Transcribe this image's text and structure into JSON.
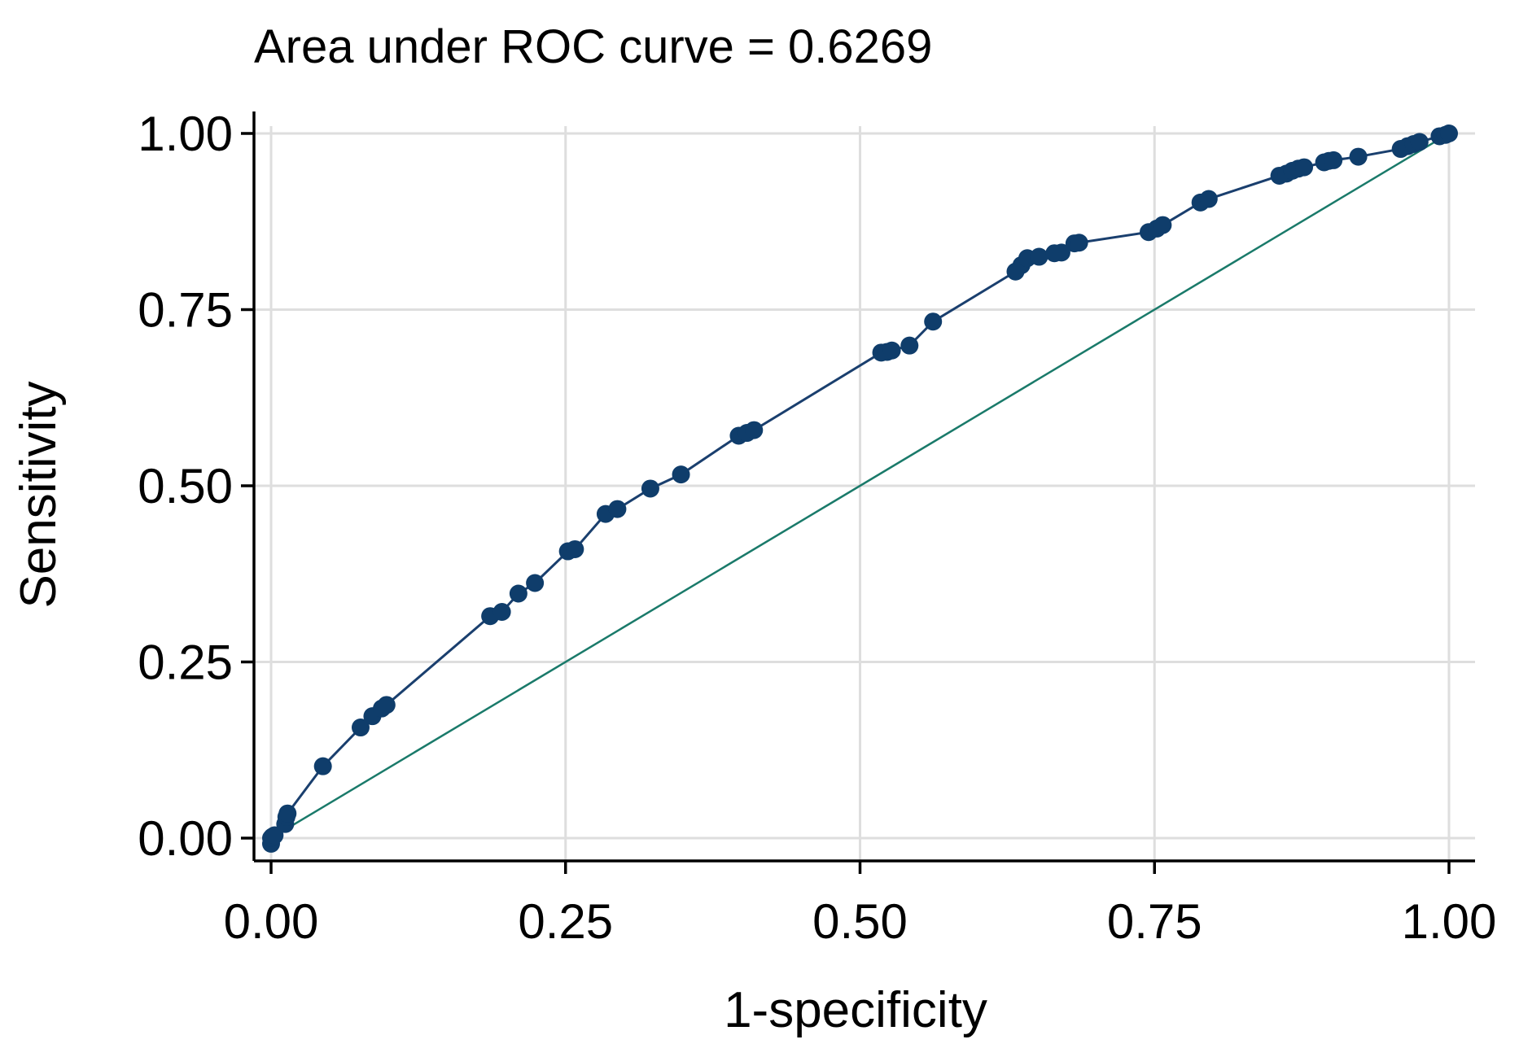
{
  "chart_data": {
    "type": "line",
    "title": "Area under ROC curve = 0.6269",
    "xlabel": "1-specificity",
    "ylabel": "Sensitivity",
    "xlim": [
      0,
      1
    ],
    "ylim": [
      0,
      1
    ],
    "xticks": [
      "0.00",
      "0.25",
      "0.50",
      "0.75",
      "1.00"
    ],
    "yticks": [
      "0.00",
      "0.25",
      "0.50",
      "0.75",
      "1.00"
    ],
    "grid": true,
    "colors": {
      "roc": "#1a3f6e",
      "marker": "#0f3d6b",
      "reference": "#1a7a6a",
      "grid": "#dedede"
    },
    "series": [
      {
        "name": "ROC curve",
        "style": "line-with-markers",
        "x": [
          0.0,
          0.0,
          0.001,
          0.003,
          0.012,
          0.013,
          0.014,
          0.044,
          0.076,
          0.086,
          0.094,
          0.098,
          0.186,
          0.196,
          0.21,
          0.224,
          0.252,
          0.258,
          0.284,
          0.294,
          0.322,
          0.348,
          0.397,
          0.404,
          0.41,
          0.518,
          0.523,
          0.527,
          0.542,
          0.562,
          0.632,
          0.637,
          0.642,
          0.652,
          0.665,
          0.671,
          0.682,
          0.686,
          0.745,
          0.752,
          0.757,
          0.789,
          0.796,
          0.856,
          0.862,
          0.867,
          0.872,
          0.877,
          0.894,
          0.898,
          0.902,
          0.923,
          0.959,
          0.965,
          0.97,
          0.975,
          0.992,
          0.997,
          1.0
        ],
        "y": [
          -0.008,
          0.0,
          0.002,
          0.004,
          0.02,
          0.03,
          0.035,
          0.102,
          0.157,
          0.173,
          0.184,
          0.189,
          0.315,
          0.321,
          0.347,
          0.362,
          0.407,
          0.41,
          0.46,
          0.467,
          0.496,
          0.516,
          0.571,
          0.575,
          0.579,
          0.689,
          0.69,
          0.692,
          0.699,
          0.733,
          0.804,
          0.813,
          0.823,
          0.825,
          0.83,
          0.831,
          0.844,
          0.845,
          0.86,
          0.865,
          0.87,
          0.902,
          0.907,
          0.94,
          0.943,
          0.947,
          0.95,
          0.952,
          0.959,
          0.961,
          0.962,
          0.967,
          0.978,
          0.982,
          0.985,
          0.988,
          0.996,
          0.998,
          1.0
        ]
      },
      {
        "name": "Reference",
        "style": "line",
        "x": [
          0,
          1
        ],
        "y": [
          0,
          1
        ]
      }
    ]
  }
}
